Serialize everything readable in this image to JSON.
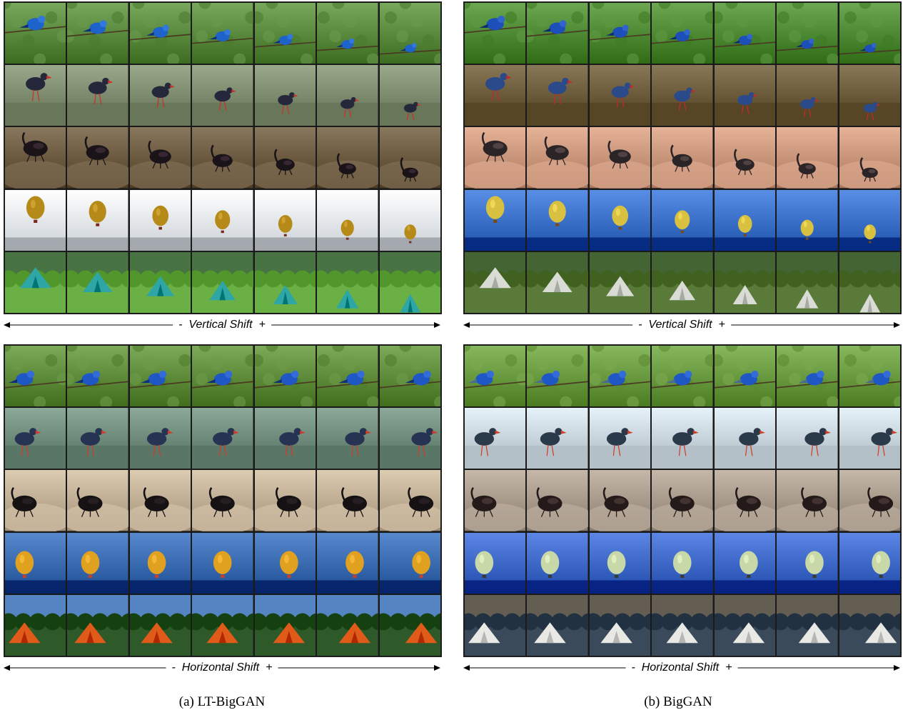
{
  "panels": [
    {
      "caption": "(a) LT-BigGAN",
      "blocks": [
        {
          "shift_label": "Vertical Shift",
          "minus": "-",
          "plus": "+",
          "rows": [
            {
              "subject": "bird",
              "bg": "#5a8a3e",
              "fg": "#1e63c9",
              "fg2": "#0f2f7a"
            },
            {
              "subject": "swamphen",
              "bg": "#7c8a6e",
              "fg": "#25283a",
              "fg2": "#c8322a"
            },
            {
              "subject": "beetle",
              "bg": "#6b5a40",
              "fg": "#1a1418",
              "fg2": "#3e2a3a"
            },
            {
              "subject": "balloon",
              "bg": "#e8eef4",
              "fg": "#b58a18",
              "fg2": "#7a2a1a"
            },
            {
              "subject": "tent",
              "bg": "#3e6a3a",
              "fg": "#2fa6a6",
              "fg2": "#6ab044"
            }
          ]
        },
        {
          "shift_label": "Horizontal Shift",
          "minus": "-",
          "plus": "+",
          "rows": [
            {
              "subject": "bird",
              "bg": "#5e8c3a",
              "fg": "#1f58c4",
              "fg2": "#0f2f7a"
            },
            {
              "subject": "swamphen",
              "bg": "#6e8a7a",
              "fg": "#273352",
              "fg2": "#d03a2a"
            },
            {
              "subject": "beetle",
              "bg": "#bfae94",
              "fg": "#161214",
              "fg2": "#2a2226"
            },
            {
              "subject": "balloon",
              "bg": "#3a6ab0",
              "fg": "#e0a020",
              "fg2": "#c8402a"
            },
            {
              "subject": "tent",
              "bg": "#4a7ab8",
              "fg": "#e05a1a",
              "fg2": "#2e5a2a"
            }
          ]
        }
      ]
    },
    {
      "caption": "(b) BigGAN",
      "blocks": [
        {
          "shift_label": "Vertical Shift",
          "minus": "-",
          "plus": "+",
          "rows": [
            {
              "subject": "bird",
              "bg": "#4e8a34",
              "fg": "#1d4fb8",
              "fg2": "#0d2a6a"
            },
            {
              "subject": "swamphen",
              "bg": "#6a5a3a",
              "fg": "#2a4a8a",
              "fg2": "#c02a2a"
            },
            {
              "subject": "beetle",
              "bg": "#c8947a",
              "fg": "#2a2426",
              "fg2": "#5a4a4a"
            },
            {
              "subject": "balloon",
              "bg": "#3a70c8",
              "fg": "#d8c040",
              "fg2": "#7a4a10"
            },
            {
              "subject": "tent",
              "bg": "#3a5a2a",
              "fg": "#d8dcd4",
              "fg2": "#5a7a3a"
            }
          ]
        },
        {
          "shift_label": "Horizontal Shift",
          "minus": "-",
          "plus": "+",
          "rows": [
            {
              "subject": "bird",
              "bg": "#6a9a40",
              "fg": "#1f58c4",
              "fg2": "#4a6a9a"
            },
            {
              "subject": "swamphen",
              "bg": "#c8d4dc",
              "fg": "#2a3a4a",
              "fg2": "#d0402a"
            },
            {
              "subject": "beetle",
              "bg": "#a89a8a",
              "fg": "#241a1a",
              "fg2": "#4a3a36"
            },
            {
              "subject": "balloon",
              "bg": "#3e68c8",
              "fg": "#c8d8a8",
              "fg2": "#3a3a2a"
            },
            {
              "subject": "tent",
              "bg": "#5a5448",
              "fg": "#e8e8e4",
              "fg2": "#3a4a5a"
            }
          ]
        }
      ]
    }
  ]
}
